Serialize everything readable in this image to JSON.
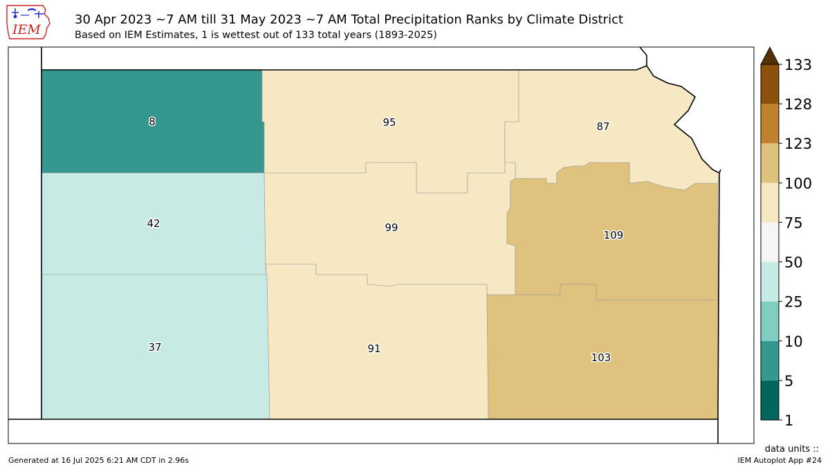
{
  "header": {
    "logo_text": "IEM",
    "title": "30 Apr 2023 ~7 AM till 31 May 2023 ~7 AM Total Precipitation Ranks by Climate District",
    "subtitle": "Based on IEM Estimates, 1 is wettest out of 133 total years (1893-2025)"
  },
  "map": {
    "districts": [
      {
        "id": "northwest",
        "rank": "8",
        "color": "#35978f"
      },
      {
        "id": "north-central",
        "rank": "95",
        "color": "#f6e8c3"
      },
      {
        "id": "northeast",
        "rank": "87",
        "color": "#f6e8c3"
      },
      {
        "id": "west-central",
        "rank": "42",
        "color": "#c7eae5"
      },
      {
        "id": "central",
        "rank": "99",
        "color": "#f6e8c3"
      },
      {
        "id": "east-central",
        "rank": "109",
        "color": "#dfc27d"
      },
      {
        "id": "southwest",
        "rank": "37",
        "color": "#c7eae5"
      },
      {
        "id": "south-central",
        "rank": "91",
        "color": "#f6e8c3"
      },
      {
        "id": "southeast",
        "rank": "103",
        "color": "#dfc27d"
      }
    ]
  },
  "legend": {
    "ticks": [
      "1",
      "5",
      "10",
      "25",
      "50",
      "75",
      "100",
      "123",
      "128",
      "133"
    ],
    "colors": [
      "#01665e",
      "#35978f",
      "#80cdc1",
      "#c7eae5",
      "#f5f5f5",
      "#f6e8c3",
      "#dfc27d",
      "#bf812d",
      "#8c510a"
    ],
    "extend_color": "#543005"
  },
  "units_label": "data units ::",
  "footer": {
    "generated": "Generated at 16 Jul 2025 6:21 AM CDT in 2.96s",
    "app": "IEM Autoplot App #24"
  }
}
